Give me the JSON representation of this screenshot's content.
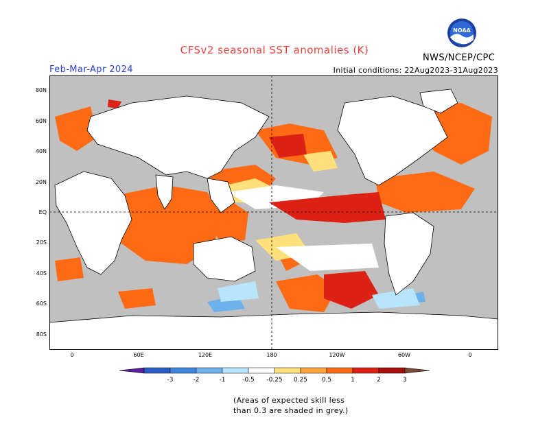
{
  "header": {
    "title": "CFSv2 seasonal SST anomalies (K)",
    "agency": "NWS/NCEP/CPC",
    "period": "Feb-Mar-Apr 2024",
    "initial_conditions": "Initial conditions: 22Aug2023-31Aug2023",
    "logo_text": "NOAA"
  },
  "axes": {
    "y_labels": [
      "80N",
      "60N",
      "40N",
      "20N",
      "EQ",
      "20S",
      "40S",
      "60S",
      "80S"
    ],
    "x_labels": [
      "0",
      "60E",
      "120E",
      "180",
      "120W",
      "60W",
      "0"
    ]
  },
  "legend": {
    "tick_labels": [
      "-3",
      "-2",
      "-1",
      "-0.5",
      "-0.25",
      "0.25",
      "0.5",
      "1",
      "2",
      "3"
    ],
    "bins": [
      {
        "color": "#5a1fa0"
      },
      {
        "color": "#2b5fc4"
      },
      {
        "color": "#3f86dc"
      },
      {
        "color": "#6cb0ec"
      },
      {
        "color": "#b7e5fb"
      },
      {
        "color": "#ffffff"
      },
      {
        "color": "#ffe07a"
      },
      {
        "color": "#ffa43a"
      },
      {
        "color": "#ff6a14"
      },
      {
        "color": "#dc2214"
      },
      {
        "color": "#a80e0e"
      },
      {
        "color": "#7a4a3a"
      }
    ]
  },
  "footnote": {
    "line1": "(Areas of expected skill less",
    "line2": "than 0.3 are shaded in grey.)"
  },
  "colors": {
    "land": "#ffffff",
    "low_skill": "#c0c0c0",
    "title": "#e8423f",
    "period": "#2a3fd6"
  }
}
